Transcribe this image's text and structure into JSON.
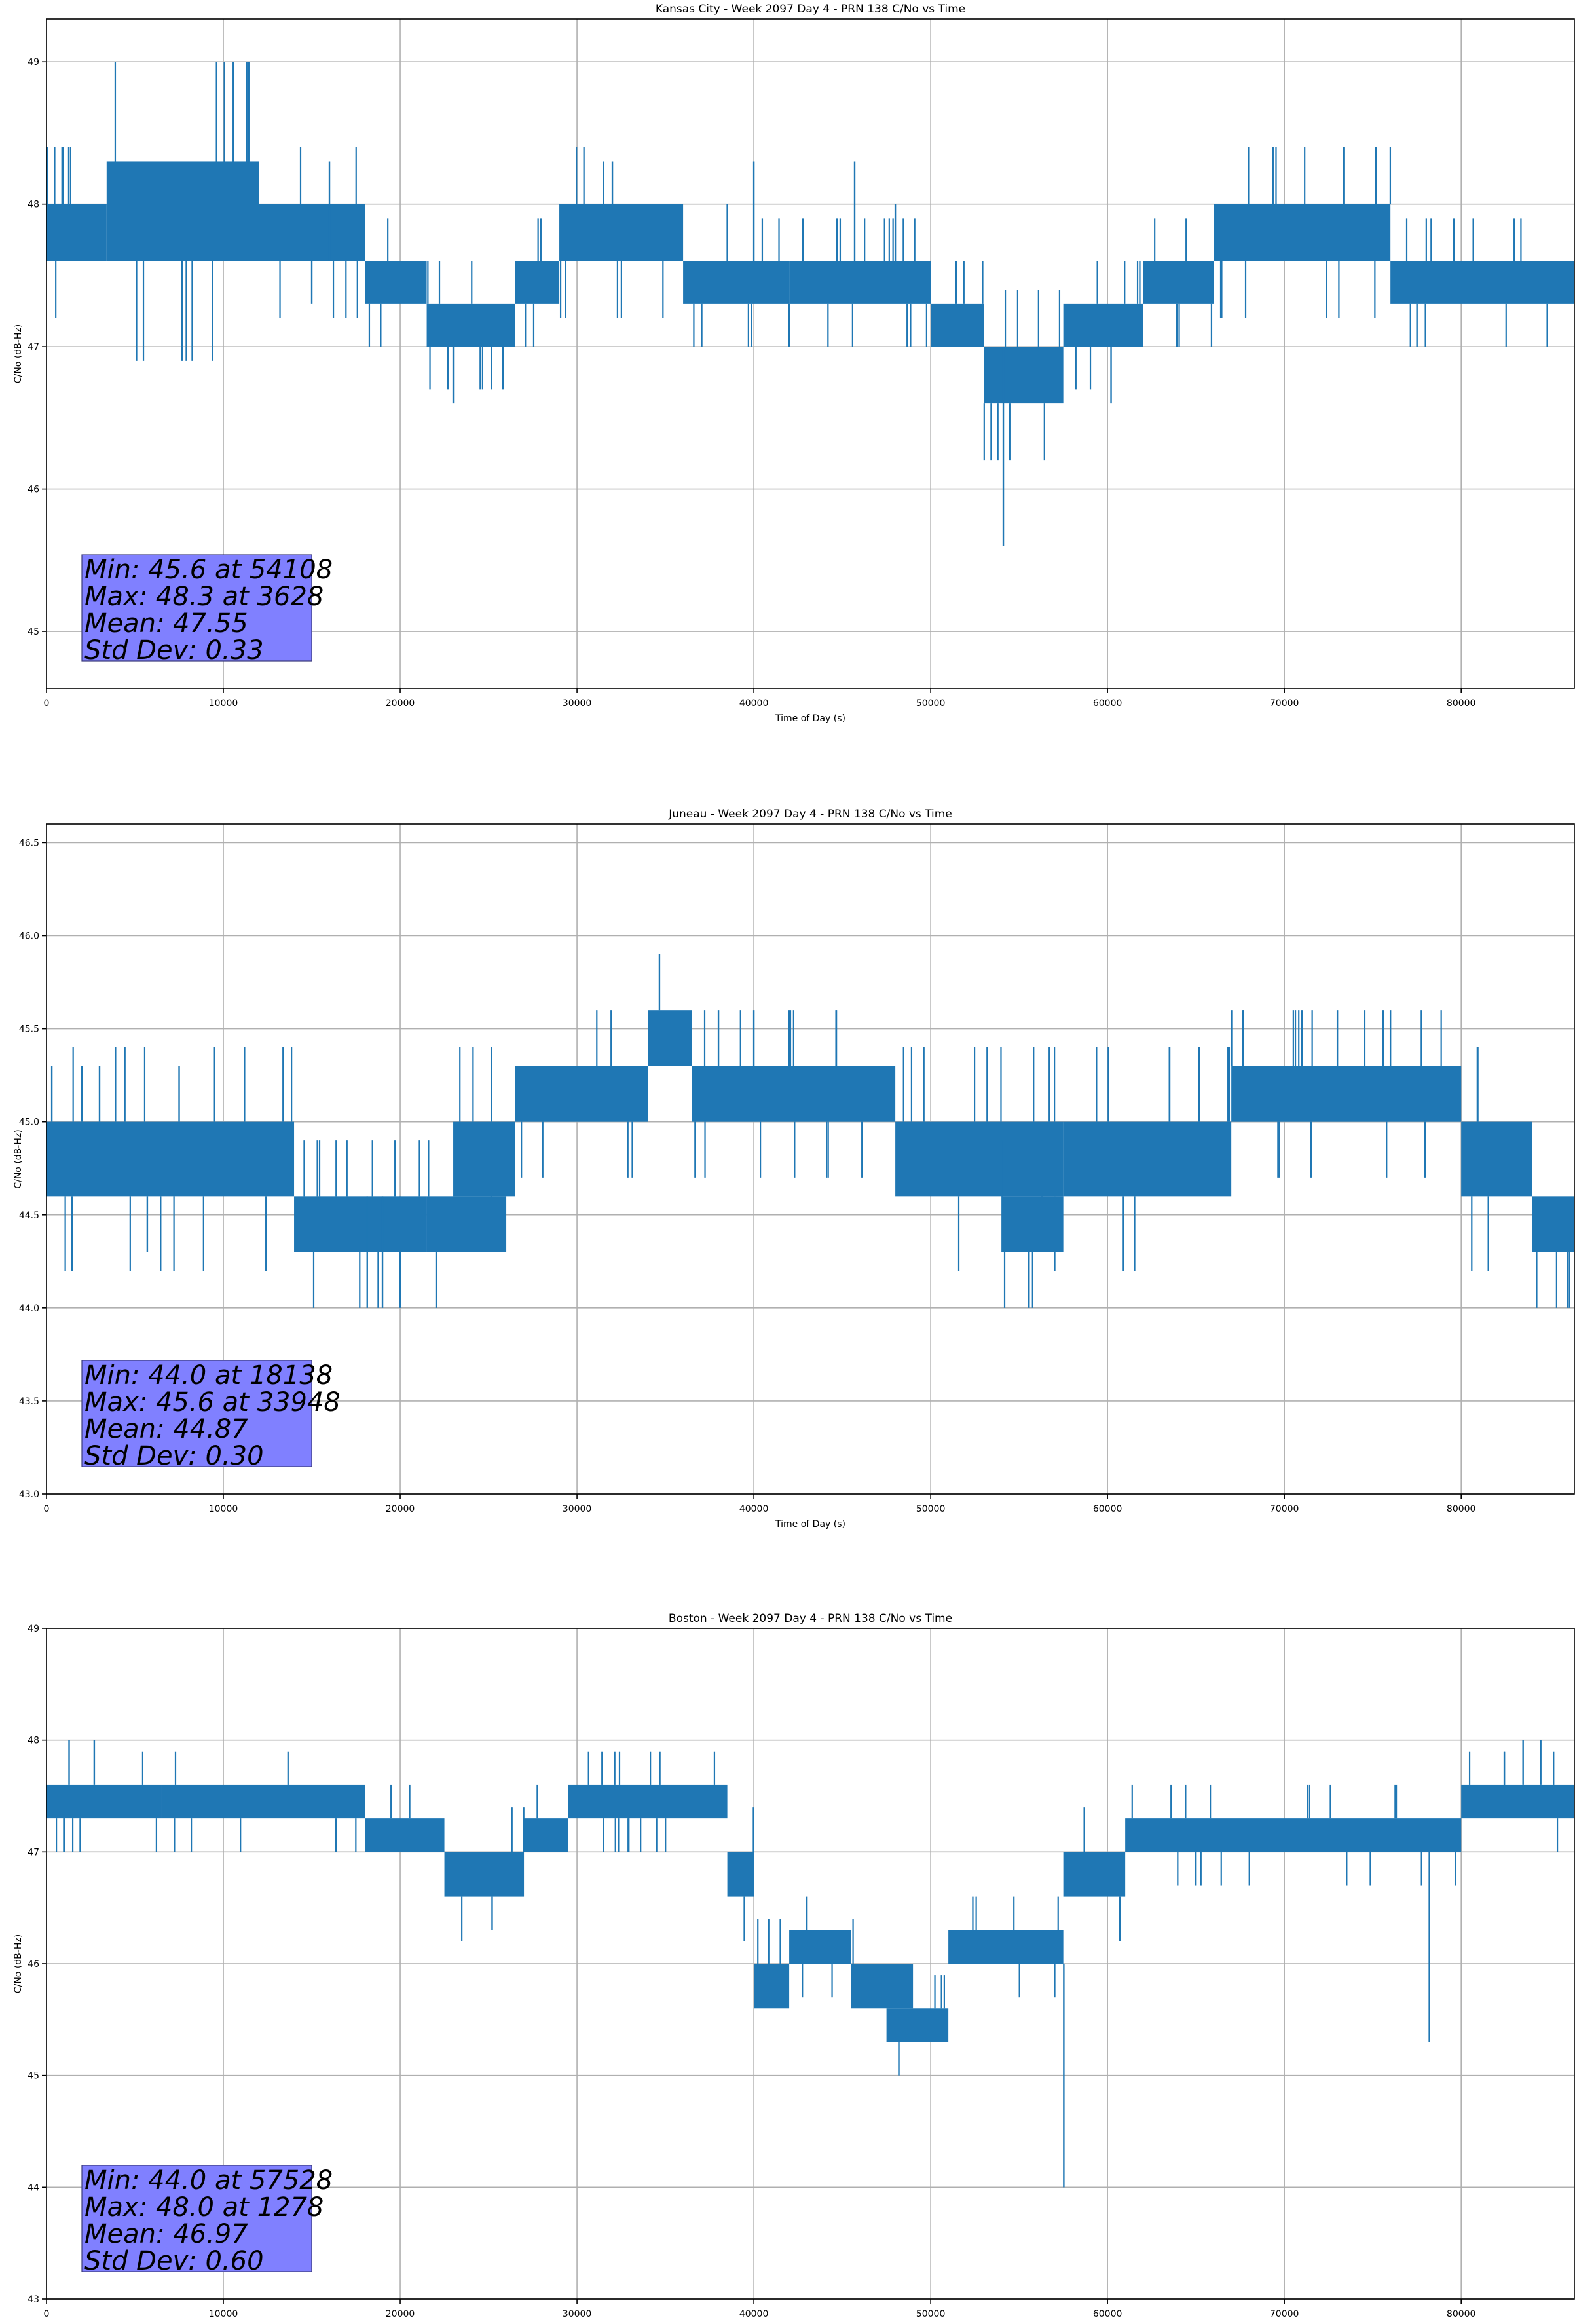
{
  "chart_data": [
    {
      "type": "line",
      "title": "Kansas City - Week 2097 Day 4 - PRN 138 C/No vs Time",
      "xlabel": "Time of Day (s)",
      "ylabel": "C/No (dB-Hz)",
      "xlim": [
        0,
        86400
      ],
      "ylim": [
        44.6,
        49.3
      ],
      "xticks": [
        0,
        10000,
        20000,
        30000,
        40000,
        50000,
        60000,
        70000,
        80000
      ],
      "xtick_labels": [
        "0",
        "10000",
        "20000",
        "30000",
        "40000",
        "50000",
        "60000",
        "70000",
        "80000"
      ],
      "yticks": [
        45,
        46,
        47,
        48,
        49
      ],
      "ytick_labels": [
        "45",
        "46",
        "47",
        "48",
        "49"
      ],
      "grid": true,
      "color": "#1f77b4",
      "series": [
        {
          "bands": [
            {
              "x0": 0,
              "x1": 3400,
              "lo": 47.6,
              "hi": 48.0
            },
            {
              "x0": 3400,
              "x1": 12000,
              "lo": 47.6,
              "hi": 48.3
            },
            {
              "x0": 12000,
              "x1": 18000,
              "lo": 47.6,
              "hi": 48.0
            },
            {
              "x0": 18000,
              "x1": 21500,
              "lo": 47.3,
              "hi": 47.6
            },
            {
              "x0": 21500,
              "x1": 26500,
              "lo": 47.0,
              "hi": 47.3
            },
            {
              "x0": 26500,
              "x1": 29000,
              "lo": 47.3,
              "hi": 47.6
            },
            {
              "x0": 29000,
              "x1": 36000,
              "lo": 47.6,
              "hi": 48.0
            },
            {
              "x0": 36000,
              "x1": 42000,
              "lo": 47.3,
              "hi": 47.6
            },
            {
              "x0": 42000,
              "x1": 50000,
              "lo": 47.3,
              "hi": 47.6
            },
            {
              "x0": 50000,
              "x1": 53000,
              "lo": 47.0,
              "hi": 47.3
            },
            {
              "x0": 53000,
              "x1": 57500,
              "lo": 46.6,
              "hi": 47.0
            },
            {
              "x0": 57500,
              "x1": 62000,
              "lo": 47.0,
              "hi": 47.3
            },
            {
              "x0": 62000,
              "x1": 66000,
              "lo": 47.3,
              "hi": 47.6
            },
            {
              "x0": 66000,
              "x1": 76000,
              "lo": 47.6,
              "hi": 48.0
            },
            {
              "x0": 76000,
              "x1": 86400,
              "lo": 47.3,
              "hi": 47.6
            }
          ],
          "spikes": [
            {
              "x": 16000,
              "lo": 47.6,
              "hi": 48.3
            },
            {
              "x": 15000,
              "lo": 47.3,
              "hi": 47.6
            },
            {
              "x": 23000,
              "lo": 46.6,
              "hi": 47.0
            },
            {
              "x": 31500,
              "lo": 48.0,
              "hi": 48.3
            },
            {
              "x": 32000,
              "lo": 48.0,
              "hi": 48.3
            },
            {
              "x": 38500,
              "lo": 47.6,
              "hi": 48.0
            },
            {
              "x": 40000,
              "lo": 47.6,
              "hi": 48.3
            },
            {
              "x": 42000,
              "lo": 47.0,
              "hi": 47.3
            },
            {
              "x": 45700,
              "lo": 47.6,
              "hi": 48.3
            },
            {
              "x": 48000,
              "lo": 47.6,
              "hi": 48.0
            },
            {
              "x": 54108,
              "lo": 45.6,
              "hi": 47.0
            },
            {
              "x": 60200,
              "lo": 46.6,
              "hi": 47.0
            },
            {
              "x": 77500,
              "lo": 47.0,
              "hi": 47.3
            }
          ],
          "stats": [
            "Min: 45.6 at 54108",
            "Max: 48.3 at 3628",
            "Mean: 47.55",
            "Std Dev: 0.33"
          ]
        }
      ]
    },
    {
      "type": "line",
      "title": "Juneau - Week 2097 Day 4 - PRN 138 C/No vs Time",
      "xlabel": "Time of Day (s)",
      "ylabel": "C/No (dB-Hz)",
      "xlim": [
        0,
        86400
      ],
      "ylim": [
        43.0,
        46.6
      ],
      "xticks": [
        0,
        10000,
        20000,
        30000,
        40000,
        50000,
        60000,
        70000,
        80000
      ],
      "xtick_labels": [
        "0",
        "10000",
        "20000",
        "30000",
        "40000",
        "50000",
        "60000",
        "70000",
        "80000"
      ],
      "yticks": [
        43.0,
        43.5,
        44.0,
        44.5,
        45.0,
        45.5,
        46.0,
        46.5
      ],
      "ytick_labels": [
        "43.0",
        "43.5",
        "44.0",
        "44.5",
        "45.0",
        "45.5",
        "46.0",
        "46.5"
      ],
      "grid": true,
      "color": "#1f77b4",
      "series": [
        {
          "bands": [
            {
              "x0": 0,
              "x1": 14000,
              "lo": 44.6,
              "hi": 45.0
            },
            {
              "x0": 14000,
              "x1": 21500,
              "lo": 44.3,
              "hi": 44.6
            },
            {
              "x0": 21500,
              "x1": 26000,
              "lo": 44.3,
              "hi": 44.6
            },
            {
              "x0": 23000,
              "x1": 26500,
              "lo": 44.6,
              "hi": 45.0
            },
            {
              "x0": 26500,
              "x1": 34000,
              "lo": 45.0,
              "hi": 45.3
            },
            {
              "x0": 34000,
              "x1": 36500,
              "lo": 45.3,
              "hi": 45.6
            },
            {
              "x0": 36500,
              "x1": 48000,
              "lo": 45.0,
              "hi": 45.3
            },
            {
              "x0": 48000,
              "x1": 53000,
              "lo": 44.6,
              "hi": 45.0
            },
            {
              "x0": 53000,
              "x1": 57500,
              "lo": 44.6,
              "hi": 45.0
            },
            {
              "x0": 54000,
              "x1": 57500,
              "lo": 44.3,
              "hi": 44.6
            },
            {
              "x0": 57500,
              "x1": 67000,
              "lo": 44.6,
              "hi": 45.0
            },
            {
              "x0": 67000,
              "x1": 80000,
              "lo": 45.0,
              "hi": 45.3
            },
            {
              "x0": 80000,
              "x1": 84000,
              "lo": 44.6,
              "hi": 45.0
            },
            {
              "x0": 84000,
              "x1": 86400,
              "lo": 44.3,
              "hi": 44.6
            }
          ],
          "spikes": [
            {
              "x": 300,
              "lo": 45.0,
              "hi": 45.3
            },
            {
              "x": 2000,
              "lo": 45.0,
              "hi": 45.3
            },
            {
              "x": 3000,
              "lo": 45.0,
              "hi": 45.3
            },
            {
              "x": 5700,
              "lo": 44.3,
              "hi": 44.6
            },
            {
              "x": 7500,
              "lo": 45.0,
              "hi": 45.3
            },
            {
              "x": 18138,
              "lo": 44.0,
              "hi": 44.6
            },
            {
              "x": 19000,
              "lo": 44.0,
              "hi": 44.6
            },
            {
              "x": 20000,
              "lo": 44.0,
              "hi": 44.6
            },
            {
              "x": 38000,
              "lo": 45.3,
              "hi": 45.6
            },
            {
              "x": 40000,
              "lo": 45.3,
              "hi": 45.6
            },
            {
              "x": 42000,
              "lo": 45.3,
              "hi": 45.6
            },
            {
              "x": 71000,
              "lo": 45.3,
              "hi": 45.6
            },
            {
              "x": 73000,
              "lo": 45.3,
              "hi": 45.6
            },
            {
              "x": 76000,
              "lo": 45.3,
              "hi": 45.6
            },
            {
              "x": 86000,
              "lo": 44.0,
              "hi": 44.3
            }
          ],
          "stats": [
            "Min: 44.0 at 18138",
            "Max: 45.6 at 33948",
            "Mean: 44.87",
            "Std Dev: 0.30"
          ]
        }
      ]
    },
    {
      "type": "line",
      "title": "Boston - Week 2097 Day 4 - PRN 138 C/No vs Time",
      "xlabel": "Time of Day (s)",
      "ylabel": "C/No (dB-Hz)",
      "xlim": [
        0,
        86400
      ],
      "ylim": [
        43,
        49
      ],
      "xticks": [
        0,
        10000,
        20000,
        30000,
        40000,
        50000,
        60000,
        70000,
        80000
      ],
      "xtick_labels": [
        "0",
        "10000",
        "20000",
        "30000",
        "40000",
        "50000",
        "60000",
        "70000",
        "80000"
      ],
      "yticks": [
        43,
        44,
        45,
        46,
        47,
        48,
        49
      ],
      "ytick_labels": [
        "43",
        "44",
        "45",
        "46",
        "47",
        "48",
        "49"
      ],
      "grid": true,
      "color": "#1f77b4",
      "series": [
        {
          "bands": [
            {
              "x0": 0,
              "x1": 6500,
              "lo": 47.3,
              "hi": 47.6
            },
            {
              "x0": 6500,
              "x1": 18000,
              "lo": 47.3,
              "hi": 47.6
            },
            {
              "x0": 18000,
              "x1": 22500,
              "lo": 47.0,
              "hi": 47.3
            },
            {
              "x0": 22500,
              "x1": 27000,
              "lo": 46.6,
              "hi": 47.0
            },
            {
              "x0": 27000,
              "x1": 29500,
              "lo": 47.0,
              "hi": 47.3
            },
            {
              "x0": 29500,
              "x1": 38500,
              "lo": 47.3,
              "hi": 47.6
            },
            {
              "x0": 38500,
              "x1": 40000,
              "lo": 46.6,
              "hi": 47.0
            },
            {
              "x0": 40000,
              "x1": 42000,
              "lo": 45.6,
              "hi": 46.0
            },
            {
              "x0": 42000,
              "x1": 45500,
              "lo": 46.0,
              "hi": 46.3
            },
            {
              "x0": 45500,
              "x1": 49000,
              "lo": 45.6,
              "hi": 46.0
            },
            {
              "x0": 47500,
              "x1": 51000,
              "lo": 45.3,
              "hi": 45.6
            },
            {
              "x0": 51000,
              "x1": 57500,
              "lo": 46.0,
              "hi": 46.3
            },
            {
              "x0": 57500,
              "x1": 61000,
              "lo": 46.6,
              "hi": 47.0
            },
            {
              "x0": 61000,
              "x1": 80000,
              "lo": 47.0,
              "hi": 47.3
            },
            {
              "x0": 80000,
              "x1": 86400,
              "lo": 47.3,
              "hi": 47.6
            }
          ],
          "spikes": [
            {
              "x": 1278,
              "lo": 47.6,
              "hi": 48.0
            },
            {
              "x": 2700,
              "lo": 47.6,
              "hi": 48.0
            },
            {
              "x": 25200,
              "lo": 46.3,
              "hi": 46.6
            },
            {
              "x": 34500,
              "lo": 47.0,
              "hi": 47.3
            },
            {
              "x": 43000,
              "lo": 46.3,
              "hi": 46.6
            },
            {
              "x": 48200,
              "lo": 45.0,
              "hi": 45.3
            },
            {
              "x": 57528,
              "lo": 44.0,
              "hi": 46.0
            },
            {
              "x": 78200,
              "lo": 45.3,
              "hi": 47.0
            },
            {
              "x": 83500,
              "lo": 47.6,
              "hi": 48.0
            },
            {
              "x": 84500,
              "lo": 47.6,
              "hi": 48.0
            }
          ],
          "stats": [
            "Min: 44.0 at 57528",
            "Max: 48.0 at 1278",
            "Mean: 46.97",
            "Std Dev: 0.60"
          ]
        }
      ]
    }
  ]
}
